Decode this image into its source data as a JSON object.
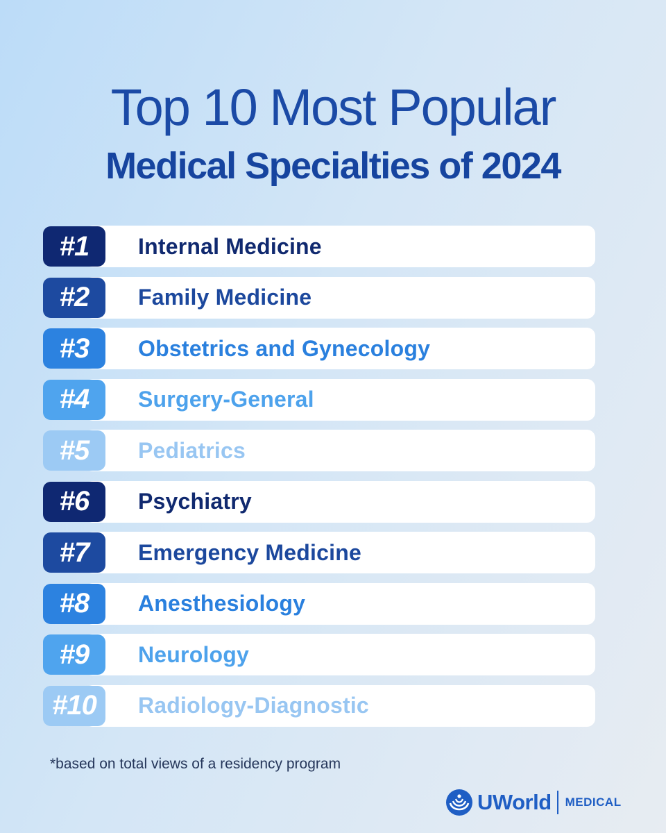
{
  "header": {
    "title_line1": "Top 10 Most Popular",
    "title_line2": "Medical Specialties of 2024"
  },
  "specialties": [
    {
      "rank": "#1",
      "name": "Internal Medicine"
    },
    {
      "rank": "#2",
      "name": "Family Medicine"
    },
    {
      "rank": "#3",
      "name": "Obstetrics and Gynecology"
    },
    {
      "rank": "#4",
      "name": "Surgery-General"
    },
    {
      "rank": "#5",
      "name": "Pediatrics"
    },
    {
      "rank": "#6",
      "name": "Psychiatry"
    },
    {
      "rank": "#7",
      "name": "Emergency Medicine"
    },
    {
      "rank": "#8",
      "name": "Anesthesiology"
    },
    {
      "rank": "#9",
      "name": "Neurology"
    },
    {
      "rank": "#10",
      "name": "Radiology-Diagnostic"
    }
  ],
  "footnote": "*based on total views of a residency program",
  "brand": {
    "icon": "uworld-globe-icon",
    "name": "UWorld",
    "division": "MEDICAL"
  },
  "colors": {
    "title": "#1b4aa6",
    "rank_shades": [
      "#0f2872",
      "#1d4aa0",
      "#2c82e0",
      "#4fa4ee",
      "#9ccaf4"
    ],
    "bar": "#ffffff",
    "brand": "#1f5ec4"
  }
}
